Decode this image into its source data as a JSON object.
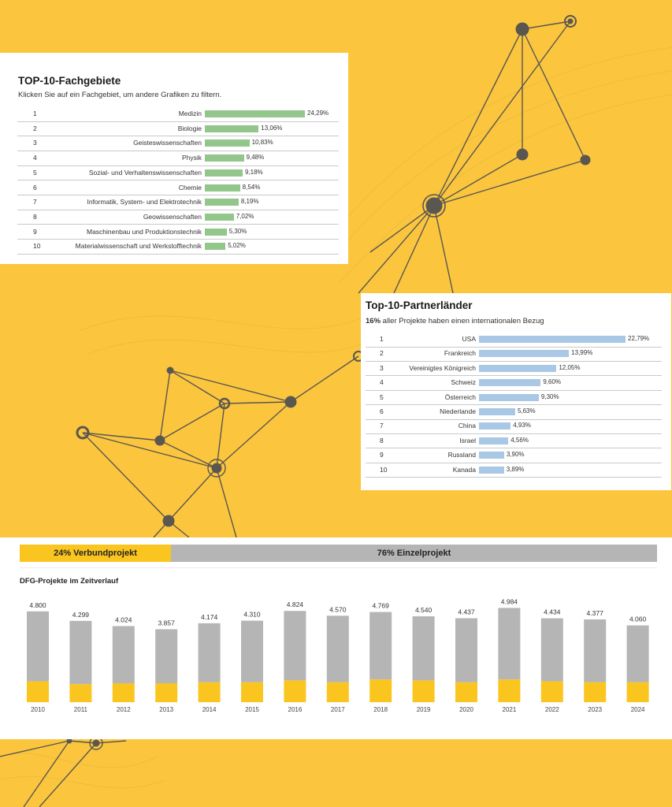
{
  "colors": {
    "background": "#fbc63e",
    "fach_bar": "#92c68a",
    "partner_bar": "#a9c8e6",
    "grey_bar": "#b5b5b5",
    "yellow_bar": "#fbc520"
  },
  "fachgebiete": {
    "title": "TOP-10-Fachgebiete",
    "subtitle": "Klicken Sie auf ein Fachgebiet, um andere Grafiken zu filtern.",
    "rows": [
      {
        "rank": "1",
        "label": "Medizin",
        "value": 24.29,
        "pct": "24,29%"
      },
      {
        "rank": "2",
        "label": "Biologie",
        "value": 13.06,
        "pct": "13,06%"
      },
      {
        "rank": "3",
        "label": "Geisteswissenschaften",
        "value": 10.83,
        "pct": "10,83%"
      },
      {
        "rank": "4",
        "label": "Physik",
        "value": 9.48,
        "pct": "9,48%"
      },
      {
        "rank": "5",
        "label": "Sozial- und Verhaltenswissenschaften",
        "value": 9.18,
        "pct": "9,18%"
      },
      {
        "rank": "6",
        "label": "Chemie",
        "value": 8.54,
        "pct": "8,54%"
      },
      {
        "rank": "7",
        "label": "Informatik, System- und Elektrotechnik",
        "value": 8.19,
        "pct": "8,19%"
      },
      {
        "rank": "8",
        "label": "Geowissenschaften",
        "value": 7.02,
        "pct": "7,02%"
      },
      {
        "rank": "9",
        "label": "Maschinenbau und Produktionstechnik",
        "value": 5.3,
        "pct": "5,30%"
      },
      {
        "rank": "10",
        "label": "Materialwissenschaft und Werkstofftechnik",
        "value": 5.02,
        "pct": "5,02%"
      }
    ]
  },
  "partnerlaender": {
    "title": "Top-10-Partnerländer",
    "subtitle_bold": "16%",
    "subtitle_rest": " aller Projekte haben einen internationalen Bezug",
    "rows": [
      {
        "rank": "1",
        "label": "USA",
        "value": 22.79,
        "pct": "22,79%"
      },
      {
        "rank": "2",
        "label": "Frankreich",
        "value": 13.99,
        "pct": "13,99%"
      },
      {
        "rank": "3",
        "label": "Vereinigtes Königreich",
        "value": 12.05,
        "pct": "12,05%"
      },
      {
        "rank": "4",
        "label": "Schweiz",
        "value": 9.6,
        "pct": "9,60%"
      },
      {
        "rank": "5",
        "label": "Österreich",
        "value": 9.3,
        "pct": "9,30%"
      },
      {
        "rank": "6",
        "label": "Niederlande",
        "value": 5.63,
        "pct": "5,63%"
      },
      {
        "rank": "7",
        "label": "China",
        "value": 4.93,
        "pct": "4,93%"
      },
      {
        "rank": "8",
        "label": "Israel",
        "value": 4.56,
        "pct": "4,56%"
      },
      {
        "rank": "9",
        "label": "Russland",
        "value": 3.9,
        "pct": "3,90%"
      },
      {
        "rank": "10",
        "label": "Kanada",
        "value": 3.89,
        "pct": "3,89%"
      }
    ]
  },
  "projektart": {
    "verbund_value": 24,
    "verbund_label": "24% Verbundprojekt",
    "einzel_value": 76,
    "einzel_label": "76% Einzelprojekt"
  },
  "chart_data": {
    "type": "bar",
    "title": "DFG-Projekte im Zeitverlauf",
    "categories": [
      "2010",
      "2011",
      "2012",
      "2013",
      "2014",
      "2015",
      "2016",
      "2017",
      "2018",
      "2019",
      "2020",
      "2021",
      "2022",
      "2023",
      "2024"
    ],
    "value_labels": [
      "4.800",
      "4.299",
      "4.024",
      "3.857",
      "4.174",
      "4.310",
      "4.824",
      "4.570",
      "4.769",
      "4.540",
      "4.437",
      "4.984",
      "4.434",
      "4.377",
      "4.060"
    ],
    "series": [
      {
        "values": [
          4800,
          4299,
          4024,
          3857,
          4174,
          4310,
          4824,
          4570,
          4769,
          4540,
          4437,
          4984,
          4434,
          4377,
          4060
        ]
      },
      {
        "values": [
          1100,
          950,
          1000,
          1000,
          1050,
          1050,
          1150,
          1050,
          1200,
          1150,
          1050,
          1200,
          1100,
          1050,
          1050
        ]
      }
    ],
    "ylim": [
      0,
      5000
    ],
    "grid": false,
    "legend": "none"
  }
}
